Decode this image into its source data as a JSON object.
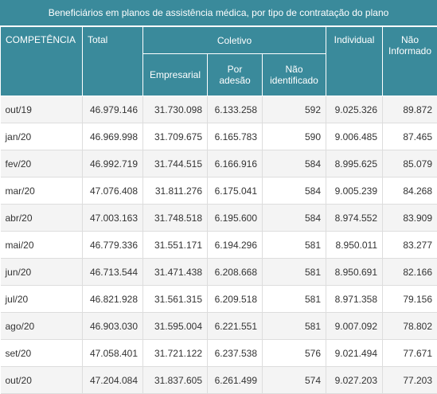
{
  "title": "Beneficiários em planos de assistência médica, por tipo de contratação do plano",
  "headers": {
    "competencia": "COMPETÊNCIA",
    "total": "Total",
    "coletivo": "Coletivo",
    "empresarial": "Empresarial",
    "por_adesao": "Por adesão",
    "nao_identificado": "Não identificado",
    "individual": "Individual",
    "nao_informado": "Não Informado"
  },
  "rows": [
    {
      "competencia": "out/19",
      "total": "46.979.146",
      "empresarial": "31.730.098",
      "por_adesao": "6.133.258",
      "nao_identificado": "592",
      "individual": "9.025.326",
      "nao_informado": "89.872"
    },
    {
      "competencia": "jan/20",
      "total": "46.969.998",
      "empresarial": "31.709.675",
      "por_adesao": "6.165.783",
      "nao_identificado": "590",
      "individual": "9.006.485",
      "nao_informado": "87.465"
    },
    {
      "competencia": "fev/20",
      "total": "46.992.719",
      "empresarial": "31.744.515",
      "por_adesao": "6.166.916",
      "nao_identificado": "584",
      "individual": "8.995.625",
      "nao_informado": "85.079"
    },
    {
      "competencia": "mar/20",
      "total": "47.076.408",
      "empresarial": "31.811.276",
      "por_adesao": "6.175.041",
      "nao_identificado": "584",
      "individual": "9.005.239",
      "nao_informado": "84.268"
    },
    {
      "competencia": "abr/20",
      "total": "47.003.163",
      "empresarial": "31.748.518",
      "por_adesao": "6.195.600",
      "nao_identificado": "584",
      "individual": "8.974.552",
      "nao_informado": "83.909"
    },
    {
      "competencia": "mai/20",
      "total": "46.779.336",
      "empresarial": "31.551.171",
      "por_adesao": "6.194.296",
      "nao_identificado": "581",
      "individual": "8.950.011",
      "nao_informado": "83.277"
    },
    {
      "competencia": "jun/20",
      "total": "46.713.544",
      "empresarial": "31.471.438",
      "por_adesao": "6.208.668",
      "nao_identificado": "581",
      "individual": "8.950.691",
      "nao_informado": "82.166"
    },
    {
      "competencia": "jul/20",
      "total": "46.821.928",
      "empresarial": "31.561.315",
      "por_adesao": "6.209.518",
      "nao_identificado": "581",
      "individual": "8.971.358",
      "nao_informado": "79.156"
    },
    {
      "competencia": "ago/20",
      "total": "46.903.030",
      "empresarial": "31.595.004",
      "por_adesao": "6.221.551",
      "nao_identificado": "581",
      "individual": "9.007.092",
      "nao_informado": "78.802"
    },
    {
      "competencia": "set/20",
      "total": "47.058.401",
      "empresarial": "31.721.122",
      "por_adesao": "6.237.538",
      "nao_identificado": "576",
      "individual": "9.021.494",
      "nao_informado": "77.671"
    },
    {
      "competencia": "out/20",
      "total": "47.204.084",
      "empresarial": "31.837.605",
      "por_adesao": "6.261.499",
      "nao_identificado": "574",
      "individual": "9.027.203",
      "nao_informado": "77.203"
    }
  ],
  "colors": {
    "header_bg": "#3a8a9b",
    "row_alt_bg": "#f4f4f4"
  }
}
